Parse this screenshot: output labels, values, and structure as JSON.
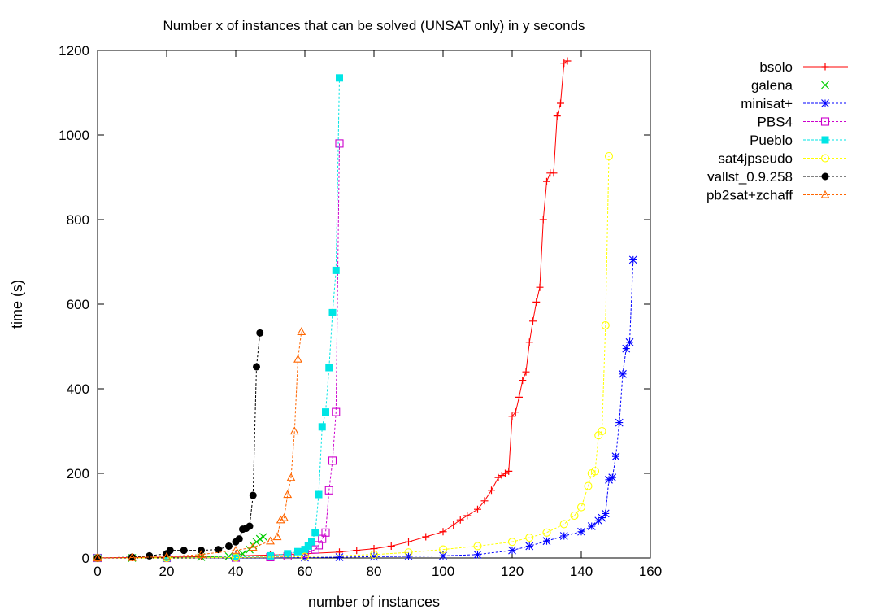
{
  "chart_data": {
    "type": "line",
    "title": "Number x of instances that can be solved (UNSAT only) in y seconds",
    "xlabel": "number of instances",
    "ylabel": "time (s)",
    "xlim": [
      0,
      160
    ],
    "ylim": [
      0,
      1200
    ],
    "xticks": [
      "0",
      "20",
      "40",
      "60",
      "80",
      "100",
      "120",
      "140",
      "160"
    ],
    "yticks": [
      "0",
      "200",
      "400",
      "600",
      "800",
      "1000",
      "1200"
    ],
    "grid": false,
    "legend_position": "outside-right-top",
    "series": [
      {
        "name": "bsolo",
        "color": "#ff0000",
        "marker": "plus",
        "dashed": false,
        "x": [
          0,
          10,
          20,
          30,
          40,
          50,
          60,
          70,
          75,
          80,
          85,
          90,
          95,
          100,
          103,
          105,
          107,
          110,
          112,
          114,
          116,
          117,
          118,
          119,
          120,
          121,
          122,
          123,
          124,
          125,
          126,
          127,
          128,
          129,
          130,
          131,
          132,
          133,
          134,
          135,
          136
        ],
        "y": [
          0,
          1,
          2,
          3,
          5,
          7,
          10,
          14,
          18,
          22,
          28,
          38,
          50,
          62,
          78,
          90,
          100,
          115,
          135,
          160,
          190,
          195,
          200,
          205,
          335,
          345,
          380,
          420,
          440,
          510,
          560,
          605,
          640,
          800,
          890,
          910,
          910,
          1045,
          1075,
          1170,
          1175
        ]
      },
      {
        "name": "galena",
        "color": "#00cc00",
        "marker": "x",
        "dashed": true,
        "x": [
          0,
          10,
          20,
          30,
          38,
          42,
          44,
          45,
          46,
          47,
          48
        ],
        "y": [
          0,
          0,
          1,
          2,
          4,
          10,
          20,
          30,
          38,
          45,
          50
        ]
      },
      {
        "name": "minisat+",
        "color": "#0000ff",
        "marker": "star",
        "dashed": true,
        "x": [
          0,
          20,
          40,
          60,
          70,
          80,
          90,
          100,
          110,
          120,
          125,
          130,
          135,
          140,
          143,
          145,
          146,
          147,
          148,
          149,
          150,
          151,
          152,
          153,
          154,
          155
        ],
        "y": [
          0,
          0,
          0,
          1,
          2,
          3,
          4,
          5,
          8,
          18,
          28,
          40,
          52,
          62,
          75,
          88,
          95,
          105,
          185,
          190,
          240,
          320,
          435,
          495,
          510,
          705
        ]
      },
      {
        "name": "PBS4",
        "color": "#cc00cc",
        "marker": "square",
        "dashed": true,
        "x": [
          0,
          20,
          40,
          50,
          55,
          60,
          63,
          64,
          65,
          66,
          67,
          68,
          69,
          70
        ],
        "y": [
          0,
          0,
          1,
          2,
          4,
          10,
          20,
          30,
          45,
          60,
          160,
          230,
          345,
          980
        ]
      },
      {
        "name": "Pueblo",
        "color": "#00e5e5",
        "marker": "filled-square",
        "dashed": true,
        "x": [
          0,
          20,
          40,
          50,
          55,
          58,
          60,
          61,
          62,
          63,
          64,
          65,
          66,
          67,
          68,
          69,
          70
        ],
        "y": [
          0,
          0,
          2,
          5,
          10,
          15,
          20,
          28,
          38,
          60,
          150,
          310,
          345,
          450,
          580,
          680,
          1135
        ]
      },
      {
        "name": "sat4jpseudo",
        "color": "#ffff00",
        "marker": "circle",
        "dashed": true,
        "x": [
          0,
          20,
          40,
          60,
          80,
          90,
          100,
          110,
          120,
          125,
          130,
          135,
          138,
          140,
          142,
          143,
          144,
          145,
          146,
          147,
          148
        ],
        "y": [
          0,
          0,
          1,
          3,
          8,
          13,
          20,
          28,
          38,
          48,
          60,
          80,
          100,
          120,
          170,
          200,
          205,
          290,
          300,
          550,
          950
        ]
      },
      {
        "name": "vallst_0.9.258",
        "color": "#000000",
        "marker": "filled-circle",
        "dashed": true,
        "x": [
          0,
          10,
          15,
          20,
          21,
          25,
          30,
          35,
          38,
          40,
          41,
          42,
          43,
          44,
          45,
          46,
          47
        ],
        "y": [
          0,
          2,
          5,
          10,
          18,
          18,
          18,
          20,
          28,
          38,
          45,
          68,
          70,
          75,
          148,
          452,
          532
        ]
      },
      {
        "name": "pb2sat+zchaff",
        "color": "#ff6600",
        "marker": "triangle",
        "dashed": true,
        "x": [
          0,
          10,
          20,
          30,
          40,
          45,
          50,
          52,
          53,
          54,
          55,
          56,
          57,
          58,
          59
        ],
        "y": [
          0,
          1,
          3,
          8,
          18,
          25,
          40,
          50,
          90,
          95,
          150,
          190,
          300,
          470,
          535
        ]
      }
    ]
  }
}
